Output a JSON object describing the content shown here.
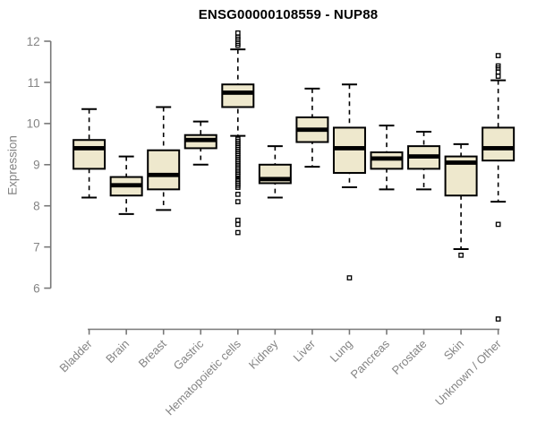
{
  "header": {
    "title": "ENSG00000108559 - NUP88"
  },
  "chart_data": {
    "type": "boxplot",
    "title": "ENSG00000108559 - NUP88",
    "xlabel": "",
    "ylabel": "Expression",
    "ylim": [
      5.0,
      12.3
    ],
    "yticks": [
      6,
      7,
      8,
      9,
      10,
      11,
      12
    ],
    "grid": false,
    "legend": "none",
    "categories": [
      "Bladder",
      "Brain",
      "Breast",
      "Gastric",
      "Hematopoietic cells",
      "Kidney",
      "Liver",
      "Lung",
      "Pancreas",
      "Prostate",
      "Skin",
      "Unknown / Other"
    ],
    "series": [
      {
        "name": "Bladder",
        "whisker_low": 8.2,
        "q1": 8.9,
        "median": 9.4,
        "q3": 9.6,
        "whisker_high": 10.35,
        "outliers": []
      },
      {
        "name": "Brain",
        "whisker_low": 7.8,
        "q1": 8.25,
        "median": 8.5,
        "q3": 8.7,
        "whisker_high": 9.2,
        "outliers": []
      },
      {
        "name": "Breast",
        "whisker_low": 7.9,
        "q1": 8.4,
        "median": 8.75,
        "q3": 9.35,
        "whisker_high": 10.4,
        "outliers": []
      },
      {
        "name": "Gastric",
        "whisker_low": 9.0,
        "q1": 9.4,
        "median": 9.6,
        "q3": 9.72,
        "whisker_high": 10.05,
        "outliers": []
      },
      {
        "name": "Hematopoietic cells",
        "whisker_low": 9.7,
        "q1": 10.4,
        "median": 10.75,
        "q3": 10.95,
        "whisker_high": 11.8,
        "outliers": [
          12.2,
          12.1,
          12.05,
          11.95,
          11.9,
          9.62,
          9.57,
          9.52,
          9.47,
          9.42,
          9.37,
          9.32,
          9.27,
          9.22,
          9.17,
          9.12,
          9.07,
          9.02,
          8.97,
          8.92,
          8.87,
          8.82,
          8.77,
          8.72,
          8.65,
          8.6,
          8.55,
          8.5,
          8.45,
          8.28,
          8.1,
          7.65,
          7.55,
          7.35
        ]
      },
      {
        "name": "Kidney",
        "whisker_low": 8.2,
        "q1": 8.55,
        "median": 8.65,
        "q3": 9.0,
        "whisker_high": 9.45,
        "outliers": []
      },
      {
        "name": "Liver",
        "whisker_low": 8.95,
        "q1": 9.55,
        "median": 9.85,
        "q3": 10.15,
        "whisker_high": 10.85,
        "outliers": []
      },
      {
        "name": "Lung",
        "whisker_low": 8.45,
        "q1": 8.8,
        "median": 9.4,
        "q3": 9.9,
        "whisker_high": 10.95,
        "outliers": [
          6.25
        ]
      },
      {
        "name": "Pancreas",
        "whisker_low": 8.4,
        "q1": 8.9,
        "median": 9.15,
        "q3": 9.3,
        "whisker_high": 9.95,
        "outliers": []
      },
      {
        "name": "Prostate",
        "whisker_low": 8.4,
        "q1": 8.9,
        "median": 9.2,
        "q3": 9.45,
        "whisker_high": 9.8,
        "outliers": []
      },
      {
        "name": "Skin",
        "whisker_low": 6.95,
        "q1": 8.25,
        "median": 9.05,
        "q3": 9.2,
        "whisker_high": 9.5,
        "outliers": [
          6.8
        ]
      },
      {
        "name": "Unknown / Other",
        "whisker_low": 8.1,
        "q1": 9.1,
        "median": 9.4,
        "q3": 9.9,
        "whisker_high": 11.05,
        "outliers": [
          11.65,
          11.4,
          11.35,
          11.25,
          11.15,
          7.55,
          5.25
        ]
      }
    ],
    "colors": {
      "box_fill": "#EEE8CD",
      "box_border": "#000000",
      "median": "#000000",
      "whisker": "#000000",
      "outlier": "#000000",
      "axis_line": "#787878",
      "axis_text": "#848484",
      "title": "#000000",
      "background": "#FFFFFF"
    }
  }
}
